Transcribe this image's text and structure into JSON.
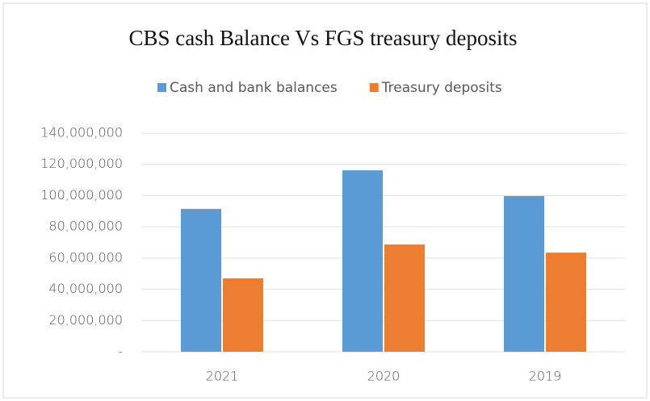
{
  "chart_data": {
    "type": "bar",
    "title": "CBS cash Balance Vs FGS treasury deposits",
    "categories": [
      "2021",
      "2020",
      "2019"
    ],
    "series": [
      {
        "name": "Cash and bank balances",
        "color": "#5b9bd5",
        "values": [
          91500000,
          116200000,
          99700000
        ]
      },
      {
        "name": "Treasury deposits",
        "color": "#ed7d31",
        "values": [
          47000000,
          68700000,
          63500000
        ]
      }
    ],
    "ylim": [
      0,
      140000000
    ],
    "yticks": [
      {
        "value": 0,
        "label": "-"
      },
      {
        "value": 20000000,
        "label": "20,000,000"
      },
      {
        "value": 40000000,
        "label": "40,000,000"
      },
      {
        "value": 60000000,
        "label": "60,000,000"
      },
      {
        "value": 80000000,
        "label": "80,000,000"
      },
      {
        "value": 100000000,
        "label": "100,000,000"
      },
      {
        "value": 120000000,
        "label": "120,000,000"
      },
      {
        "value": 140000000,
        "label": "140,000,000"
      }
    ],
    "grid": true,
    "legend": "top"
  }
}
